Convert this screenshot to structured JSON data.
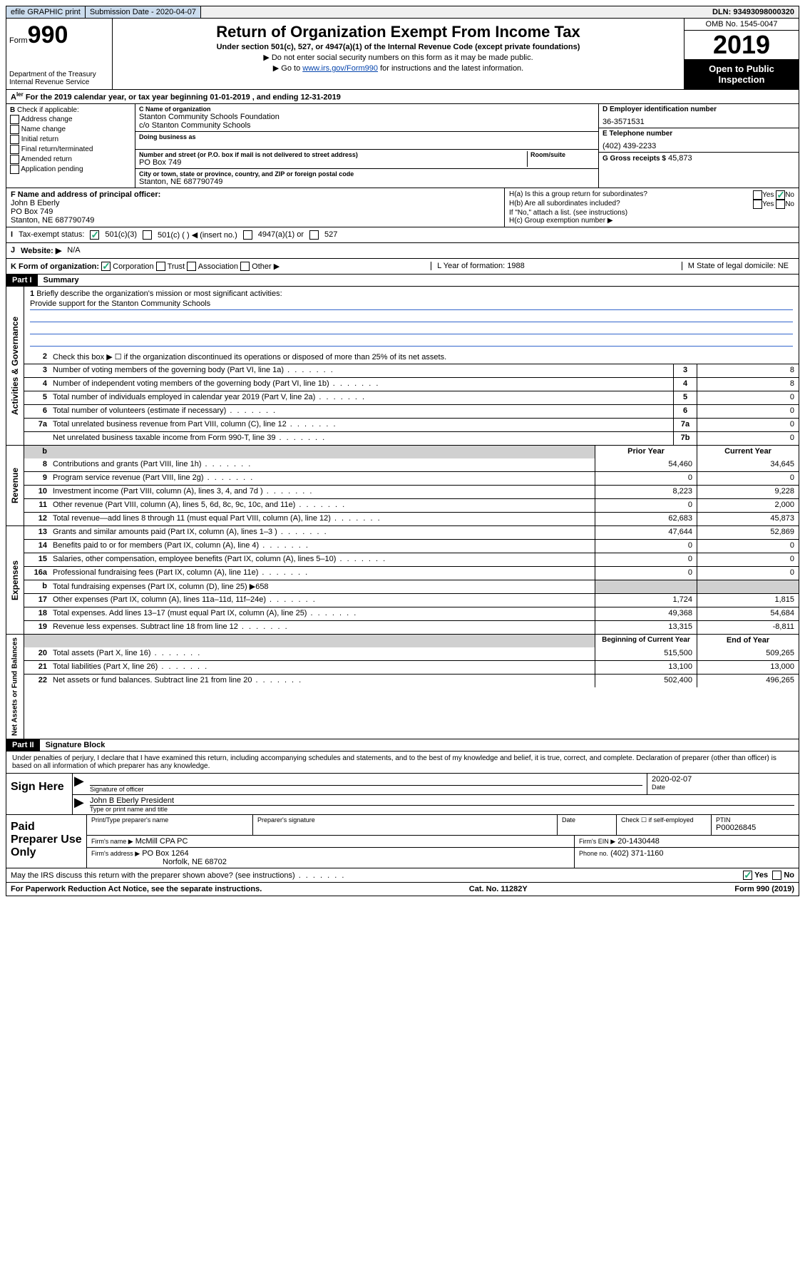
{
  "colors": {
    "link": "#0645ad",
    "check": "#22aa77",
    "shade": "#d0d0d0",
    "black": "#000000",
    "underline": "#3366cc"
  },
  "topbar": {
    "efile": "efile GRAPHIC print",
    "sub_label": "Submission Date - 2020-04-07",
    "dln": "DLN: 93493098000320"
  },
  "header": {
    "form_word": "Form",
    "form_num": "990",
    "dept": "Department of the Treasury\nInternal Revenue Service",
    "title": "Return of Organization Exempt From Income Tax",
    "subtitle": "Under section 501(c), 527, or 4947(a)(1) of the Internal Revenue Code (except private foundations)",
    "note1": "▶ Do not enter social security numbers on this form as it may be made public.",
    "note2_pre": "▶ Go to ",
    "note2_link": "www.irs.gov/Form990",
    "note2_post": " for instructions and the latest information.",
    "omb": "OMB No. 1545-0047",
    "year": "2019",
    "otp": "Open to Public Inspection"
  },
  "period": "For the 2019 calendar year, or tax year beginning 01-01-2019   , and ending 12-31-2019",
  "box_b": {
    "label": "Check if applicable:",
    "items": [
      "Address change",
      "Name change",
      "Initial return",
      "Final return/terminated",
      "Amended return",
      "Application pending"
    ]
  },
  "box_c": {
    "name_lbl": "C Name of organization",
    "name": "Stanton Community Schools Foundation",
    "co": "c/o Stanton Community Schools",
    "dba_lbl": "Doing business as",
    "addr_lbl": "Number and street (or P.O. box if mail is not delivered to street address)",
    "room_lbl": "Room/suite",
    "addr": "PO Box 749",
    "city_lbl": "City or town, state or province, country, and ZIP or foreign postal code",
    "city": "Stanton, NE  687790749"
  },
  "box_d": {
    "ein_lbl": "D Employer identification number",
    "ein": "36-3571531",
    "tel_lbl": "E Telephone number",
    "tel": "(402) 439-2233",
    "gross_lbl": "G Gross receipts $",
    "gross": "45,873"
  },
  "box_f": {
    "lbl": "F  Name and address of principal officer:",
    "name": "John B Eberly",
    "addr1": "PO Box 749",
    "addr2": "Stanton, NE  687790749"
  },
  "box_h": {
    "a": "H(a)  Is this a group return for subordinates?",
    "b": "H(b)  Are all subordinates included?",
    "b_note": "If \"No,\" attach a list. (see instructions)",
    "c": "H(c)  Group exemption number ▶",
    "yes": "Yes",
    "no": "No"
  },
  "tax_status": {
    "lbl": "Tax-exempt status:",
    "opt1": "501(c)(3)",
    "opt2": "501(c) (  ) ◀ (insert no.)",
    "opt3": "4947(a)(1) or",
    "opt4": "527"
  },
  "website": {
    "lbl": "Website: ▶",
    "val": "N/A"
  },
  "k_row": {
    "lbl": "K Form of organization:",
    "opts": [
      "Corporation",
      "Trust",
      "Association",
      "Other ▶"
    ],
    "l": "L Year of formation: 1988",
    "m": "M State of legal domicile: NE"
  },
  "part1": {
    "hdr": "Part I",
    "title": "Summary"
  },
  "mission": {
    "q": "Briefly describe the organization's mission or most significant activities:",
    "text": "Provide support for the Stanton Community Schools"
  },
  "lines_gov": [
    {
      "n": "2",
      "t": "Check this box ▶ ☐  if the organization discontinued its operations or disposed of more than 25% of its net assets."
    },
    {
      "n": "3",
      "t": "Number of voting members of the governing body (Part VI, line 1a)",
      "box": "3",
      "v": "8"
    },
    {
      "n": "4",
      "t": "Number of independent voting members of the governing body (Part VI, line 1b)",
      "box": "4",
      "v": "8"
    },
    {
      "n": "5",
      "t": "Total number of individuals employed in calendar year 2019 (Part V, line 2a)",
      "box": "5",
      "v": "0"
    },
    {
      "n": "6",
      "t": "Total number of volunteers (estimate if necessary)",
      "box": "6",
      "v": "0"
    },
    {
      "n": "7a",
      "t": "Total unrelated business revenue from Part VIII, column (C), line 12",
      "box": "7a",
      "v": "0"
    },
    {
      "n": "",
      "t": "Net unrelated business taxable income from Form 990-T, line 39",
      "box": "7b",
      "v": "0"
    }
  ],
  "col_headers": {
    "prior": "Prior Year",
    "current": "Current Year",
    "boy": "Beginning of Current Year",
    "eoy": "End of Year"
  },
  "lines_rev": [
    {
      "n": "8",
      "t": "Contributions and grants (Part VIII, line 1h)",
      "p": "54,460",
      "c": "34,645"
    },
    {
      "n": "9",
      "t": "Program service revenue (Part VIII, line 2g)",
      "p": "0",
      "c": "0"
    },
    {
      "n": "10",
      "t": "Investment income (Part VIII, column (A), lines 3, 4, and 7d )",
      "p": "8,223",
      "c": "9,228"
    },
    {
      "n": "11",
      "t": "Other revenue (Part VIII, column (A), lines 5, 6d, 8c, 9c, 10c, and 11e)",
      "p": "0",
      "c": "2,000"
    },
    {
      "n": "12",
      "t": "Total revenue—add lines 8 through 11 (must equal Part VIII, column (A), line 12)",
      "p": "62,683",
      "c": "45,873"
    }
  ],
  "lines_exp": [
    {
      "n": "13",
      "t": "Grants and similar amounts paid (Part IX, column (A), lines 1–3 )",
      "p": "47,644",
      "c": "52,869"
    },
    {
      "n": "14",
      "t": "Benefits paid to or for members (Part IX, column (A), line 4)",
      "p": "0",
      "c": "0"
    },
    {
      "n": "15",
      "t": "Salaries, other compensation, employee benefits (Part IX, column (A), lines 5–10)",
      "p": "0",
      "c": "0"
    },
    {
      "n": "16a",
      "t": "Professional fundraising fees (Part IX, column (A), line 11e)",
      "p": "0",
      "c": "0"
    },
    {
      "n": "b",
      "t": "Total fundraising expenses (Part IX, column (D), line 25) ▶658",
      "shade": true
    },
    {
      "n": "17",
      "t": "Other expenses (Part IX, column (A), lines 11a–11d, 11f–24e)",
      "p": "1,724",
      "c": "1,815"
    },
    {
      "n": "18",
      "t": "Total expenses. Add lines 13–17 (must equal Part IX, column (A), line 25)",
      "p": "49,368",
      "c": "54,684"
    },
    {
      "n": "19",
      "t": "Revenue less expenses. Subtract line 18 from line 12",
      "p": "13,315",
      "c": "-8,811"
    }
  ],
  "lines_net": [
    {
      "n": "20",
      "t": "Total assets (Part X, line 16)",
      "p": "515,500",
      "c": "509,265"
    },
    {
      "n": "21",
      "t": "Total liabilities (Part X, line 26)",
      "p": "13,100",
      "c": "13,000"
    },
    {
      "n": "22",
      "t": "Net assets or fund balances. Subtract line 21 from line 20",
      "p": "502,400",
      "c": "496,265"
    }
  ],
  "side_labels": {
    "gov": "Activities & Governance",
    "rev": "Revenue",
    "exp": "Expenses",
    "net": "Net Assets or Fund Balances"
  },
  "part2": {
    "hdr": "Part II",
    "title": "Signature Block"
  },
  "decl": "Under penalties of perjury, I declare that I have examined this return, including accompanying schedules and statements, and to the best of my knowledge and belief, it is true, correct, and complete. Declaration of preparer (other than officer) is based on all information of which preparer has any knowledge.",
  "sign": {
    "here": "Sign Here",
    "sig_lbl": "Signature of officer",
    "date_lbl": "Date",
    "date": "2020-02-07",
    "name": "John B Eberly  President",
    "name_lbl": "Type or print name and title"
  },
  "paid": {
    "title": "Paid Preparer Use Only",
    "h_name": "Print/Type preparer's name",
    "h_sig": "Preparer's signature",
    "h_date": "Date",
    "h_self": "Check ☐ if self-employed",
    "h_ptin": "PTIN",
    "ptin": "P00026845",
    "firm_lbl": "Firm's name    ▶",
    "firm": "McMill CPA PC",
    "ein_lbl": "Firm's EIN ▶",
    "ein": "20-1430448",
    "addr_lbl": "Firm's address ▶",
    "addr1": "PO Box 1264",
    "addr2": "Norfolk, NE  68702",
    "phone_lbl": "Phone no.",
    "phone": "(402) 371-1160"
  },
  "discuss": {
    "q": "May the IRS discuss this return with the preparer shown above? (see instructions)",
    "yes": "Yes",
    "no": "No"
  },
  "footer": {
    "pra": "For Paperwork Reduction Act Notice, see the separate instructions.",
    "cat": "Cat. No. 11282Y",
    "form": "Form 990 (2019)"
  }
}
